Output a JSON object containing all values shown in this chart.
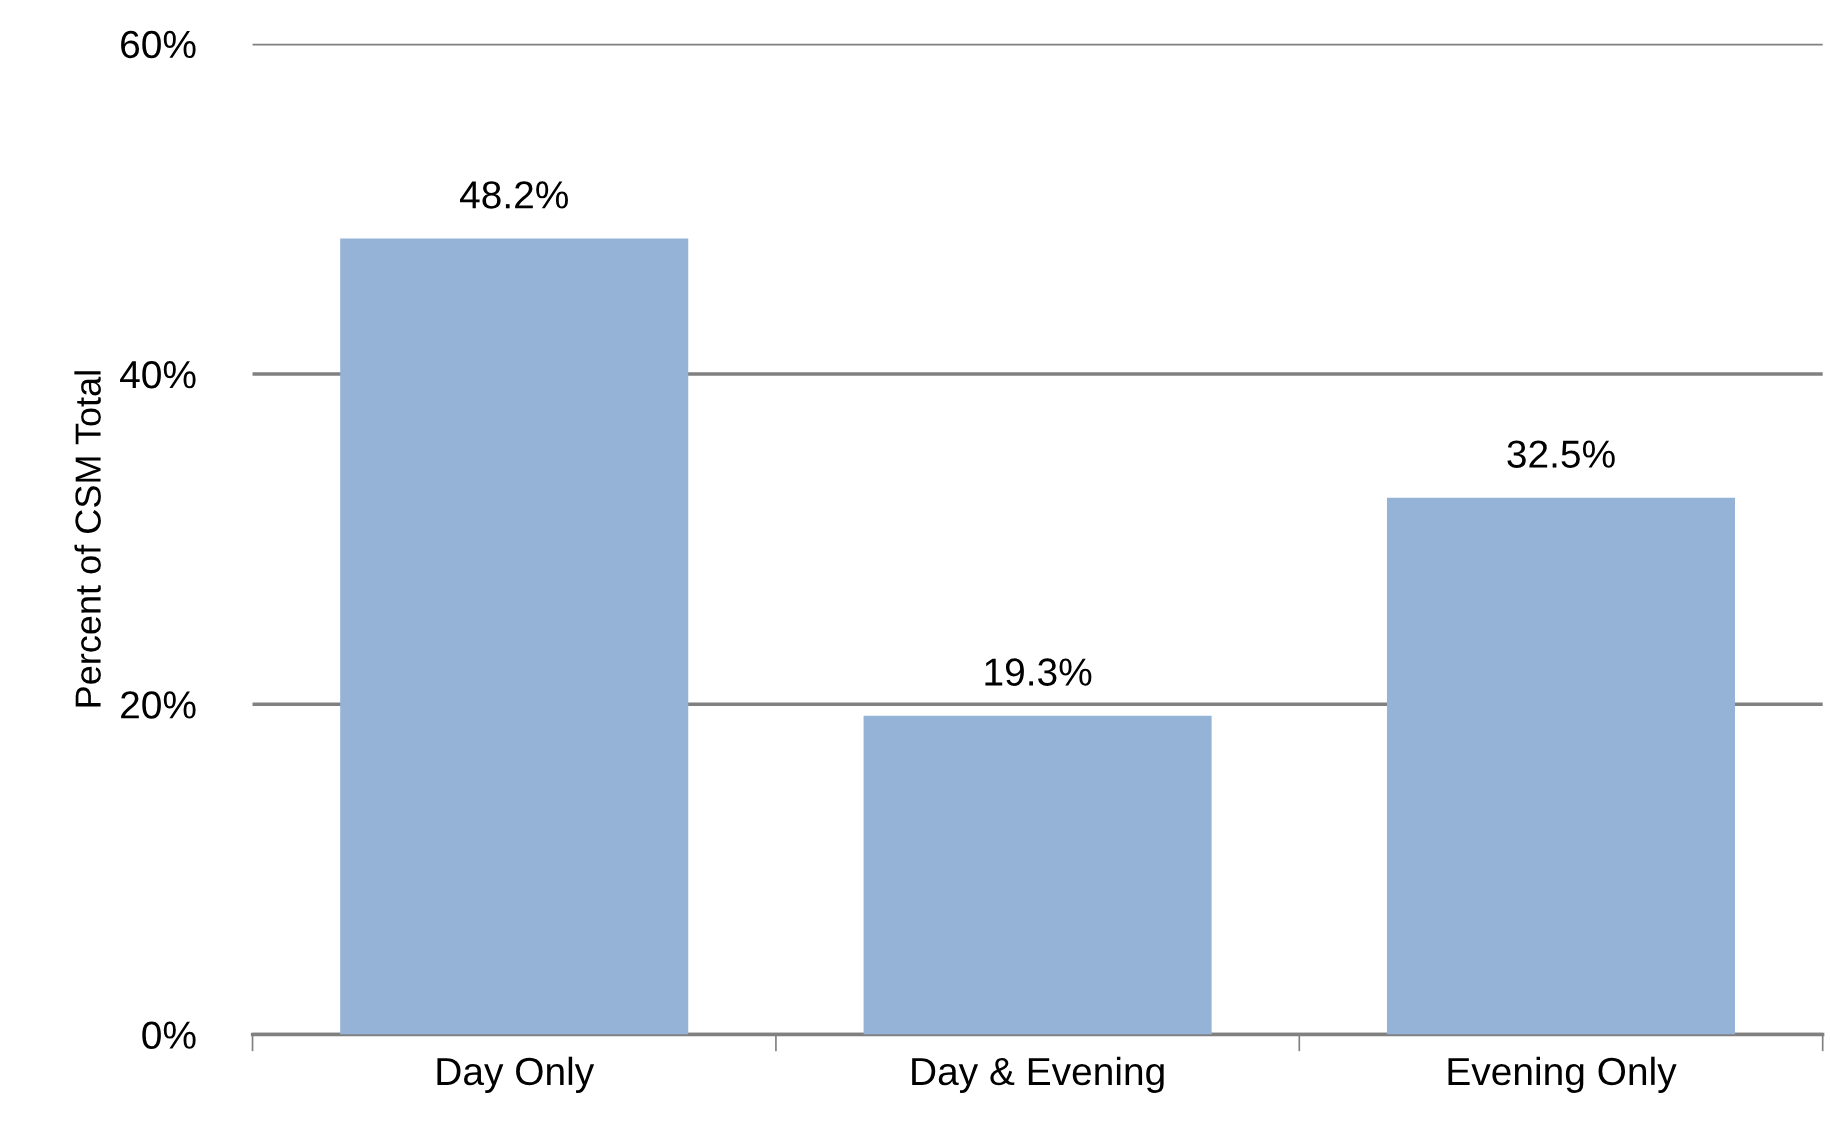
{
  "chart_data": {
    "type": "bar",
    "ylabel": "Percent of CSM Total",
    "categories": [
      "Day Only",
      "Day & Evening",
      "Evening Only"
    ],
    "values": [
      48.2,
      19.3,
      32.5
    ],
    "value_labels": [
      "48.2%",
      "19.3%",
      "32.5%"
    ],
    "color": "#95b3d7",
    "ylim": [
      0,
      60
    ],
    "yticks": [
      {
        "value": 0,
        "label": "0%"
      },
      {
        "value": 20,
        "label": "20%"
      },
      {
        "value": 40,
        "label": "40%"
      },
      {
        "value": 60,
        "label": "60%"
      }
    ],
    "grid": "y"
  }
}
